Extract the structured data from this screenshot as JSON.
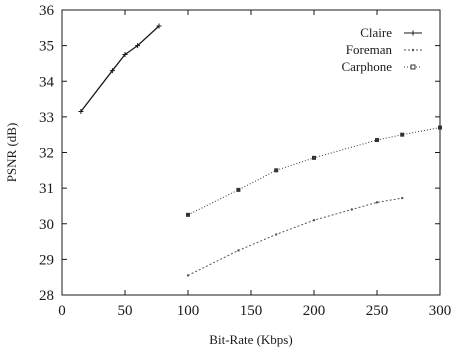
{
  "chart_data": {
    "type": "line",
    "title": "",
    "xlabel": "Bit-Rate (Kbps)",
    "ylabel": "PSNR (dB)",
    "xlim": [
      0,
      300
    ],
    "ylim": [
      28,
      36
    ],
    "xticks": [
      0,
      50,
      100,
      150,
      200,
      250,
      300
    ],
    "yticks": [
      28,
      29,
      30,
      31,
      32,
      33,
      34,
      35,
      36
    ],
    "grid": false,
    "legend_position": "top-right",
    "series": [
      {
        "name": "Claire",
        "marker": "+",
        "color": "#1a1a1a",
        "x": [
          15,
          40,
          50,
          60,
          77
        ],
        "y": [
          33.15,
          34.3,
          34.75,
          35.0,
          35.55
        ]
      },
      {
        "name": "Foreman",
        "marker": "dot",
        "color": "#555555",
        "x": [
          100,
          140,
          170,
          200,
          230,
          250,
          270
        ],
        "y": [
          28.55,
          29.25,
          29.7,
          30.1,
          30.4,
          30.6,
          30.72
        ]
      },
      {
        "name": "Carphone",
        "marker": "square",
        "color": "#333333",
        "x": [
          100,
          140,
          170,
          200,
          250,
          270,
          300
        ],
        "y": [
          30.25,
          30.95,
          31.5,
          31.85,
          32.35,
          32.5,
          32.7
        ]
      }
    ]
  }
}
